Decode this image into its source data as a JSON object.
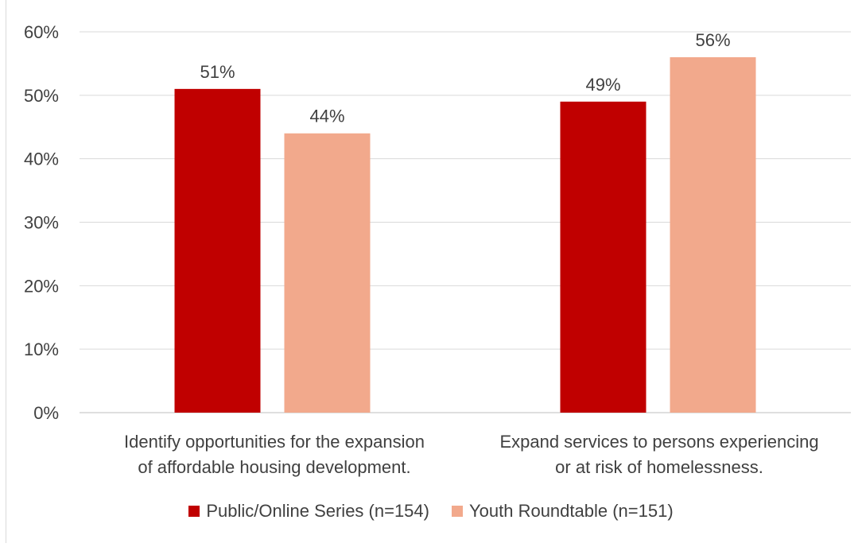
{
  "chart_data": {
    "type": "bar",
    "categories": [
      [
        "Identify opportunities for the expansion",
        "of affordable housing development."
      ],
      [
        "Expand services to persons experiencing",
        "or at risk of homelessness."
      ]
    ],
    "series": [
      {
        "name": "Public/Online Series (n=154)",
        "values": [
          51,
          49
        ],
        "labels": [
          "51%",
          "49%"
        ],
        "color": "#c00000"
      },
      {
        "name": "Youth Roundtable (n=151)",
        "values": [
          44,
          56
        ],
        "labels": [
          "44%",
          "56%"
        ],
        "color": "#f2a98c"
      }
    ],
    "ylim": [
      0,
      60
    ],
    "yticks": [
      0,
      10,
      20,
      30,
      40,
      50,
      60
    ],
    "ytick_labels": [
      "0%",
      "10%",
      "20%",
      "30%",
      "40%",
      "50%",
      "60%"
    ],
    "grid": true,
    "legend_position": "bottom"
  },
  "legend": {
    "items": [
      {
        "label": "Public/Online Series (n=154)",
        "color": "#c00000"
      },
      {
        "label": "Youth Roundtable (n=151)",
        "color": "#f2a98c"
      }
    ]
  },
  "labels": {
    "cat0_line1": "Identify opportunities for the expansion",
    "cat0_line2": "of affordable housing development.",
    "cat1_line1": "Expand services to persons experiencing",
    "cat1_line2": "or at risk of homelessness."
  }
}
